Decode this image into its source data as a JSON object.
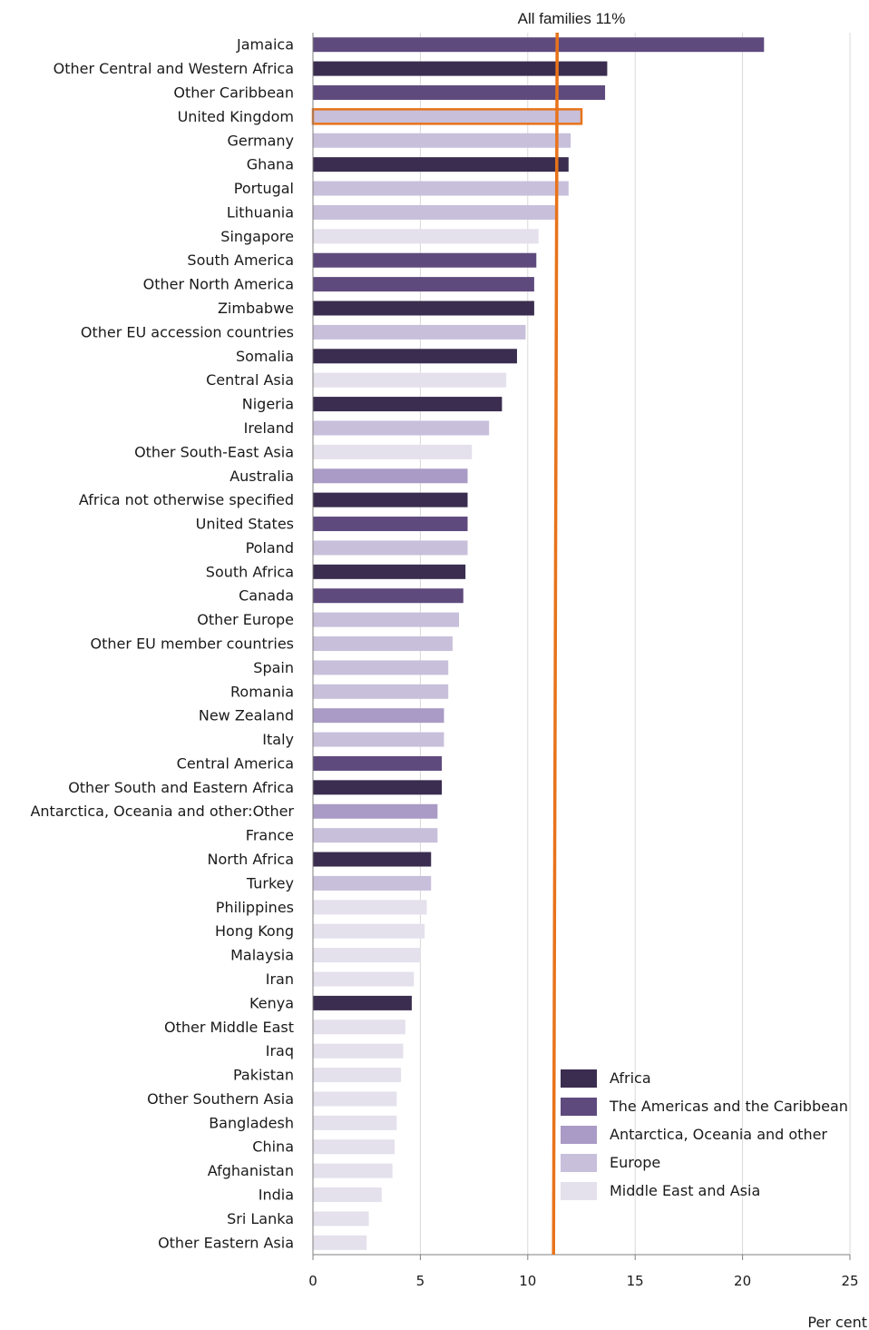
{
  "chart_data": {
    "type": "bar",
    "orientation": "horizontal",
    "xlabel": "Per cent",
    "xlim": [
      0,
      25
    ],
    "xticks": [
      0,
      5,
      10,
      15,
      20,
      25
    ],
    "grid": true,
    "legend_position": "bottom-right",
    "reference_line": {
      "value": 11.2,
      "label": "All families 11%",
      "color": "#e8731a"
    },
    "highlight": {
      "category": "United Kingdom",
      "color": "#e8731a"
    },
    "groups": [
      {
        "name": "Africa",
        "color": "#3a2d4f"
      },
      {
        "name": "The Americas and the Caribbean",
        "color": "#5f4a7e"
      },
      {
        "name": "Antarctica, Oceania and other",
        "color": "#a99bc5"
      },
      {
        "name": "Europe",
        "color": "#c8bfdb"
      },
      {
        "name": "Middle East and Asia",
        "color": "#e4e0ec"
      }
    ],
    "bars": [
      {
        "label": "Jamaica",
        "value": 21.0,
        "group": "The Americas and the Caribbean"
      },
      {
        "label": "Other Central and Western Africa",
        "value": 13.7,
        "group": "Africa"
      },
      {
        "label": "Other Caribbean",
        "value": 13.6,
        "group": "The Americas and the Caribbean"
      },
      {
        "label": "United Kingdom",
        "value": 12.5,
        "group": "Europe"
      },
      {
        "label": "Germany",
        "value": 12.0,
        "group": "Europe"
      },
      {
        "label": "Ghana",
        "value": 11.9,
        "group": "Africa"
      },
      {
        "label": "Portugal",
        "value": 11.9,
        "group": "Europe"
      },
      {
        "label": "Lithuania",
        "value": 11.4,
        "group": "Europe"
      },
      {
        "label": "Singapore",
        "value": 10.5,
        "group": "Middle East and Asia"
      },
      {
        "label": "South America",
        "value": 10.4,
        "group": "The Americas and the Caribbean"
      },
      {
        "label": "Other North America",
        "value": 10.3,
        "group": "The Americas and the Caribbean"
      },
      {
        "label": "Zimbabwe",
        "value": 10.3,
        "group": "Africa"
      },
      {
        "label": "Other EU accession countries",
        "value": 9.9,
        "group": "Europe"
      },
      {
        "label": "Somalia",
        "value": 9.5,
        "group": "Africa"
      },
      {
        "label": "Central Asia",
        "value": 9.0,
        "group": "Middle East and Asia"
      },
      {
        "label": "Nigeria",
        "value": 8.8,
        "group": "Africa"
      },
      {
        "label": "Ireland",
        "value": 8.2,
        "group": "Europe"
      },
      {
        "label": "Other South-East Asia",
        "value": 7.4,
        "group": "Middle East and Asia"
      },
      {
        "label": "Australia",
        "value": 7.2,
        "group": "Antarctica, Oceania and other"
      },
      {
        "label": "Africa not otherwise specified",
        "value": 7.2,
        "group": "Africa"
      },
      {
        "label": "United States",
        "value": 7.2,
        "group": "The Americas and the Caribbean"
      },
      {
        "label": "Poland",
        "value": 7.2,
        "group": "Europe"
      },
      {
        "label": "South Africa",
        "value": 7.1,
        "group": "Africa"
      },
      {
        "label": "Canada",
        "value": 7.0,
        "group": "The Americas and the Caribbean"
      },
      {
        "label": "Other Europe",
        "value": 6.8,
        "group": "Europe"
      },
      {
        "label": "Other EU member countries",
        "value": 6.5,
        "group": "Europe"
      },
      {
        "label": "Spain",
        "value": 6.3,
        "group": "Europe"
      },
      {
        "label": "Romania",
        "value": 6.3,
        "group": "Europe"
      },
      {
        "label": "New Zealand",
        "value": 6.1,
        "group": "Antarctica, Oceania and other"
      },
      {
        "label": "Italy",
        "value": 6.1,
        "group": "Europe"
      },
      {
        "label": "Central America",
        "value": 6.0,
        "group": "The Americas and the Caribbean"
      },
      {
        "label": "Other South and Eastern Africa",
        "value": 6.0,
        "group": "Africa"
      },
      {
        "label": "Antarctica, Oceania and other:Other",
        "value": 5.8,
        "group": "Antarctica, Oceania and other"
      },
      {
        "label": "France",
        "value": 5.8,
        "group": "Europe"
      },
      {
        "label": "North Africa",
        "value": 5.5,
        "group": "Africa"
      },
      {
        "label": "Turkey",
        "value": 5.5,
        "group": "Europe"
      },
      {
        "label": "Philippines",
        "value": 5.3,
        "group": "Middle East and Asia"
      },
      {
        "label": "Hong Kong",
        "value": 5.2,
        "group": "Middle East and Asia"
      },
      {
        "label": "Malaysia",
        "value": 5.0,
        "group": "Middle East and Asia"
      },
      {
        "label": "Iran",
        "value": 4.7,
        "group": "Middle East and Asia"
      },
      {
        "label": "Kenya",
        "value": 4.6,
        "group": "Africa"
      },
      {
        "label": "Other Middle East",
        "value": 4.3,
        "group": "Middle East and Asia"
      },
      {
        "label": "Iraq",
        "value": 4.2,
        "group": "Middle East and Asia"
      },
      {
        "label": "Pakistan",
        "value": 4.1,
        "group": "Middle East and Asia"
      },
      {
        "label": "Other Southern Asia",
        "value": 3.9,
        "group": "Middle East and Asia"
      },
      {
        "label": "Bangladesh",
        "value": 3.9,
        "group": "Middle East and Asia"
      },
      {
        "label": "China",
        "value": 3.8,
        "group": "Middle East and Asia"
      },
      {
        "label": "Afghanistan",
        "value": 3.7,
        "group": "Middle East and Asia"
      },
      {
        "label": "India",
        "value": 3.2,
        "group": "Middle East and Asia"
      },
      {
        "label": "Sri Lanka",
        "value": 2.6,
        "group": "Middle East and Asia"
      },
      {
        "label": "Other Eastern Asia",
        "value": 2.5,
        "group": "Middle East and Asia"
      }
    ]
  }
}
